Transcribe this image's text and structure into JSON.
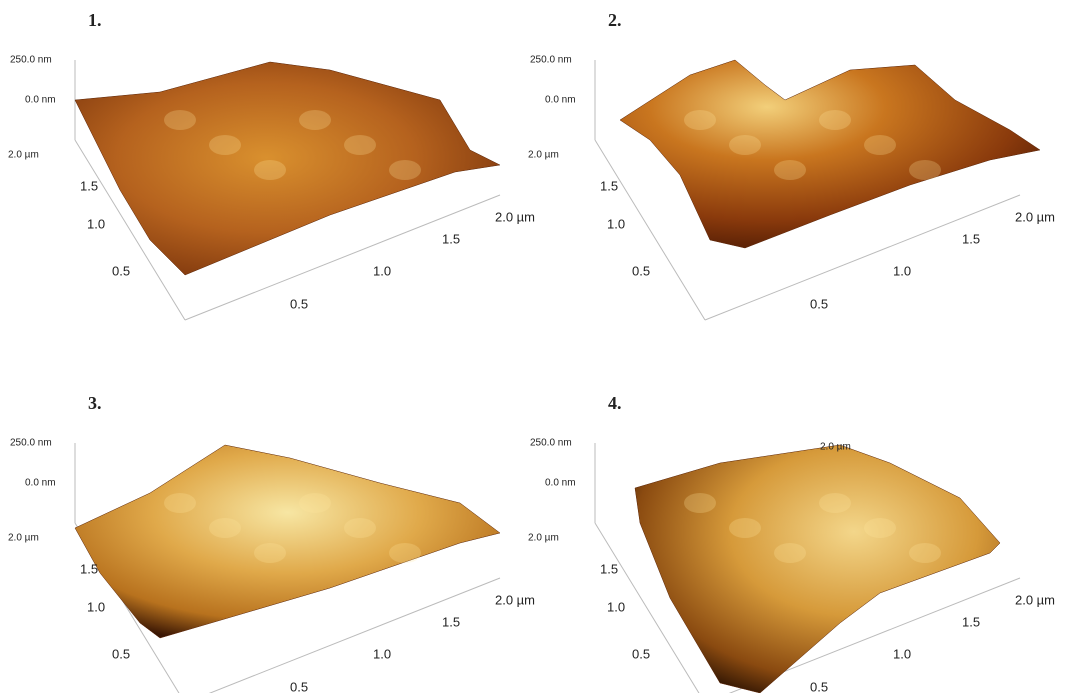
{
  "panels": [
    {
      "label": "1.",
      "z_labels": [
        "250.0 nm",
        "0.0 nm"
      ],
      "y_labels": [
        "2.0 µm",
        "1.5",
        "1.0",
        "0.5"
      ],
      "x_labels": [
        "0.5",
        "1.0",
        "1.5",
        "2.0 µm"
      ]
    },
    {
      "label": "2.",
      "z_labels": [
        "250.0 nm",
        "0.0 nm"
      ],
      "y_labels": [
        "2.0 µm",
        "1.5",
        "1.0",
        "0.5"
      ],
      "x_labels": [
        "0.5",
        "1.0",
        "1.5",
        "2.0 µm"
      ]
    },
    {
      "label": "3.",
      "z_labels": [
        "250.0 nm",
        "0.0 nm"
      ],
      "y_labels": [
        "2.0 µm",
        "1.5",
        "1.0",
        "0.5"
      ],
      "x_labels": [
        "0.5",
        "1.0",
        "1.5",
        "2.0 µm"
      ]
    },
    {
      "label": "4.",
      "z_labels": [
        "250.0 nm",
        "0.0 nm"
      ],
      "y_labels": [
        "2.0 µm",
        "1.5",
        "1.0",
        "0.5"
      ],
      "x_labels": [
        "0.5",
        "1.0",
        "1.5",
        "2.0 µm"
      ],
      "extra_label": "2.0 µm"
    }
  ]
}
